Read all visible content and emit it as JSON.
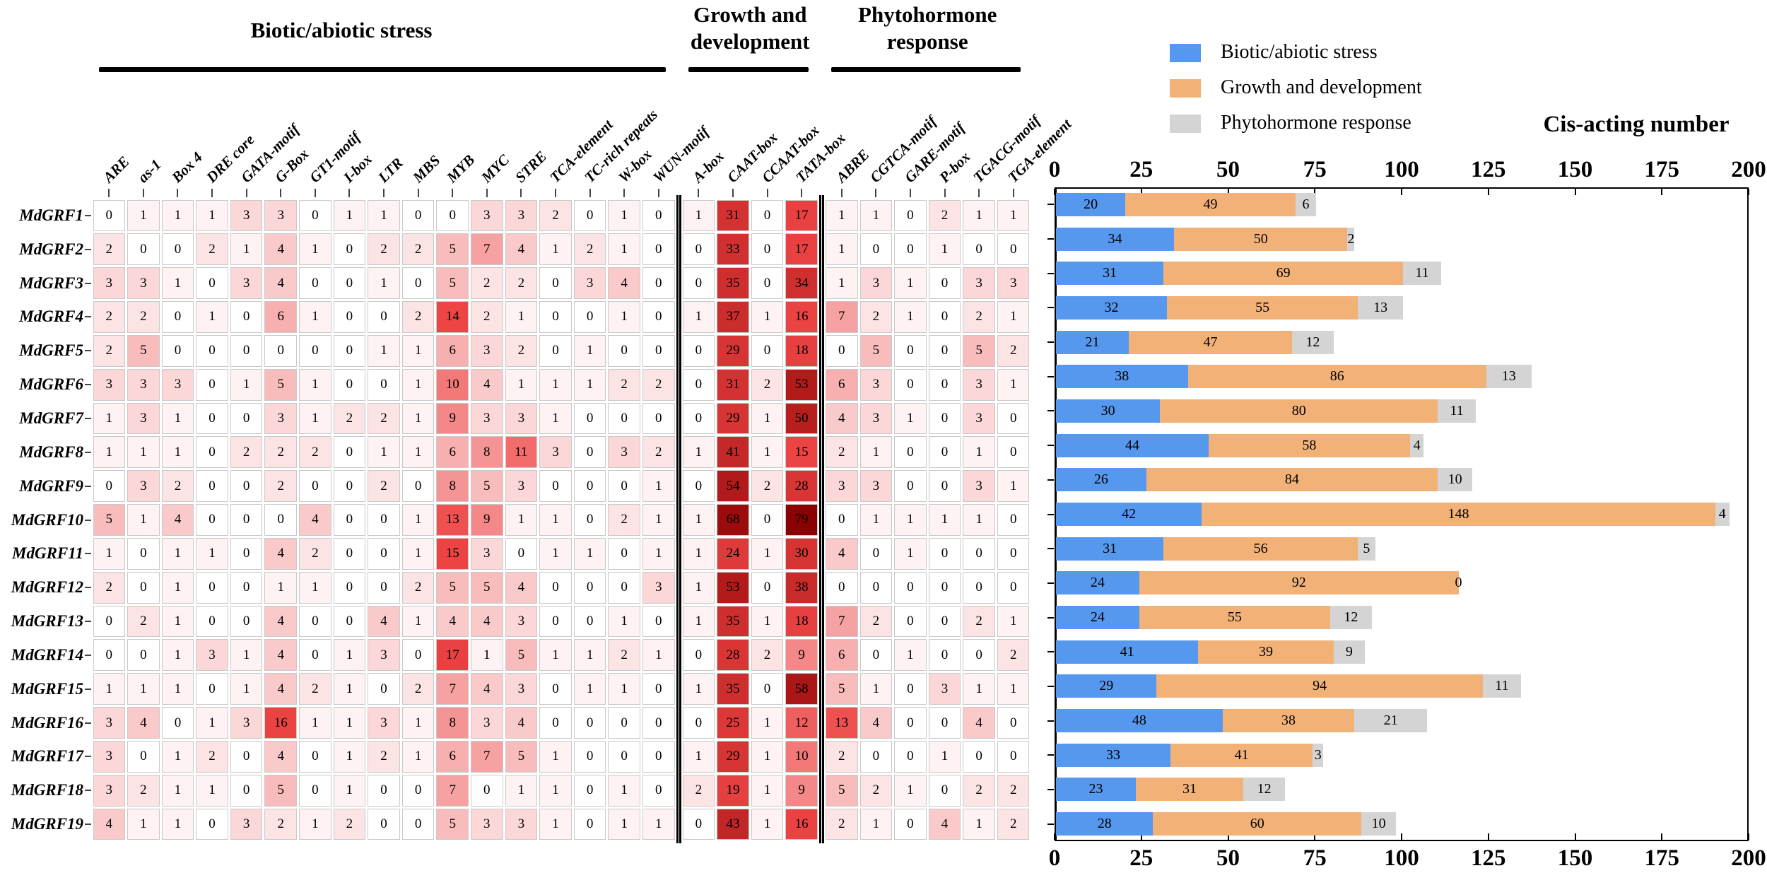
{
  "figure_title": "Cis-acting number",
  "chart_data": [
    {
      "type": "heatmap",
      "row_labels": [
        "MdGRF1",
        "MdGRF2",
        "MdGRF3",
        "MdGRF4",
        "MdGRF5",
        "MdGRF6",
        "MdGRF7",
        "MdGRF8",
        "MdGRF9",
        "MdGRF10",
        "MdGRF11",
        "MdGRF12",
        "MdGRF13",
        "MdGRF14",
        "MdGRF15",
        "MdGRF16",
        "MdGRF17",
        "MdGRF18",
        "MdGRF19"
      ],
      "column_groups": [
        {
          "title_lines": [
            "Biotic/abiotic stress"
          ],
          "columns": [
            "ARE",
            "as-1",
            "Box 4",
            "DRE core",
            "GATA-motif",
            "G-Box",
            "GT1-motif",
            "I-box",
            "LTR",
            "MBS",
            "MYB",
            "MYC",
            "STRE",
            "TCA-element",
            "TC-rich repeats",
            "W-box",
            "WUN-motif"
          ]
        },
        {
          "title_lines": [
            "Growth and",
            "development"
          ],
          "columns": [
            "A-box",
            "CAAT-box",
            "CCAAT-box",
            "TATA-box"
          ]
        },
        {
          "title_lines": [
            "Phytohormone",
            "response"
          ],
          "columns": [
            "ABRE",
            "CGTCA-motif",
            "GARE-motif",
            "P-box",
            "TGACG-motif",
            "TGA-element"
          ]
        }
      ],
      "values": [
        [
          0,
          1,
          1,
          1,
          3,
          3,
          0,
          1,
          1,
          0,
          0,
          3,
          3,
          2,
          0,
          1,
          0,
          1,
          31,
          0,
          17,
          1,
          1,
          0,
          2,
          1,
          1
        ],
        [
          2,
          0,
          0,
          2,
          1,
          4,
          1,
          0,
          2,
          2,
          5,
          7,
          4,
          1,
          2,
          1,
          0,
          0,
          33,
          0,
          17,
          1,
          0,
          0,
          1,
          0,
          0
        ],
        [
          3,
          3,
          1,
          0,
          3,
          4,
          0,
          0,
          1,
          0,
          5,
          2,
          2,
          0,
          3,
          4,
          0,
          0,
          35,
          0,
          34,
          1,
          3,
          1,
          0,
          3,
          3
        ],
        [
          2,
          2,
          0,
          1,
          0,
          6,
          1,
          0,
          0,
          2,
          14,
          2,
          1,
          0,
          0,
          1,
          0,
          1,
          37,
          1,
          16,
          7,
          2,
          1,
          0,
          2,
          1
        ],
        [
          2,
          5,
          0,
          0,
          0,
          0,
          0,
          0,
          1,
          1,
          6,
          3,
          2,
          0,
          1,
          0,
          0,
          0,
          29,
          0,
          18,
          0,
          5,
          0,
          0,
          5,
          2
        ],
        [
          3,
          3,
          3,
          0,
          1,
          5,
          1,
          0,
          0,
          1,
          10,
          4,
          1,
          1,
          1,
          2,
          2,
          0,
          31,
          2,
          53,
          6,
          3,
          0,
          0,
          3,
          1
        ],
        [
          1,
          3,
          1,
          0,
          0,
          3,
          1,
          2,
          2,
          1,
          9,
          3,
          3,
          1,
          0,
          0,
          0,
          0,
          29,
          1,
          50,
          4,
          3,
          1,
          0,
          3,
          0
        ],
        [
          1,
          1,
          1,
          0,
          2,
          2,
          2,
          0,
          1,
          1,
          6,
          8,
          11,
          3,
          0,
          3,
          2,
          1,
          41,
          1,
          15,
          2,
          1,
          0,
          0,
          1,
          0
        ],
        [
          0,
          3,
          2,
          0,
          0,
          2,
          0,
          0,
          2,
          0,
          8,
          5,
          3,
          0,
          0,
          0,
          1,
          0,
          54,
          2,
          28,
          3,
          3,
          0,
          0,
          3,
          1
        ],
        [
          5,
          1,
          4,
          0,
          0,
          0,
          4,
          0,
          0,
          1,
          13,
          9,
          1,
          1,
          0,
          2,
          1,
          1,
          68,
          0,
          79,
          0,
          1,
          1,
          1,
          1,
          0
        ],
        [
          1,
          0,
          1,
          1,
          0,
          4,
          2,
          0,
          0,
          1,
          15,
          3,
          0,
          1,
          1,
          0,
          1,
          1,
          24,
          1,
          30,
          4,
          0,
          1,
          0,
          0,
          0
        ],
        [
          2,
          0,
          1,
          0,
          0,
          1,
          1,
          0,
          0,
          2,
          5,
          5,
          4,
          0,
          0,
          0,
          3,
          1,
          53,
          0,
          38,
          0,
          0,
          0,
          0,
          0,
          0
        ],
        [
          0,
          2,
          1,
          0,
          0,
          4,
          0,
          0,
          4,
          1,
          4,
          4,
          3,
          0,
          0,
          1,
          0,
          1,
          35,
          1,
          18,
          7,
          2,
          0,
          0,
          2,
          1
        ],
        [
          0,
          0,
          1,
          3,
          1,
          4,
          0,
          1,
          3,
          0,
          17,
          1,
          5,
          1,
          1,
          2,
          1,
          0,
          28,
          2,
          9,
          6,
          0,
          1,
          0,
          0,
          2
        ],
        [
          1,
          1,
          1,
          0,
          1,
          4,
          2,
          1,
          0,
          2,
          7,
          4,
          3,
          0,
          1,
          1,
          0,
          1,
          35,
          0,
          58,
          5,
          1,
          0,
          3,
          1,
          1
        ],
        [
          3,
          4,
          0,
          1,
          3,
          16,
          1,
          1,
          3,
          1,
          8,
          3,
          4,
          0,
          0,
          0,
          0,
          0,
          25,
          1,
          12,
          13,
          4,
          0,
          0,
          4,
          0
        ],
        [
          3,
          0,
          1,
          2,
          0,
          4,
          0,
          1,
          2,
          1,
          6,
          7,
          5,
          1,
          0,
          0,
          0,
          1,
          29,
          1,
          10,
          2,
          0,
          0,
          1,
          0,
          0
        ],
        [
          3,
          2,
          1,
          1,
          0,
          5,
          0,
          1,
          0,
          0,
          7,
          0,
          1,
          1,
          0,
          1,
          0,
          2,
          19,
          1,
          9,
          5,
          2,
          1,
          0,
          2,
          2
        ],
        [
          4,
          1,
          1,
          0,
          3,
          2,
          1,
          2,
          0,
          0,
          5,
          3,
          3,
          1,
          0,
          1,
          1,
          0,
          43,
          1,
          16,
          2,
          1,
          0,
          4,
          1,
          2
        ]
      ],
      "color_scale": {
        "stops": [
          {
            "value": 0,
            "color": "#ffffff"
          },
          {
            "value": 14,
            "color": "#ee4444"
          },
          {
            "value": 79,
            "color": "#8b0000"
          }
        ]
      }
    },
    {
      "type": "bar",
      "orientation": "horizontal-stacked",
      "title": "Cis-acting number",
      "categories": [
        "MdGRF1",
        "MdGRF2",
        "MdGRF3",
        "MdGRF4",
        "MdGRF5",
        "MdGRF6",
        "MdGRF7",
        "MdGRF8",
        "MdGRF9",
        "MdGRF10",
        "MdGRF11",
        "MdGRF12",
        "MdGRF13",
        "MdGRF14",
        "MdGRF15",
        "MdGRF16",
        "MdGRF17",
        "MdGRF18",
        "MdGRF19"
      ],
      "series": [
        {
          "name": "Biotic/abiotic stress",
          "color": "#5598ee",
          "values": [
            20,
            34,
            31,
            32,
            21,
            38,
            30,
            44,
            26,
            42,
            31,
            24,
            24,
            41,
            29,
            48,
            33,
            23,
            28
          ]
        },
        {
          "name": "Growth and development",
          "color": "#f2b176",
          "values": [
            49,
            50,
            69,
            55,
            47,
            86,
            80,
            58,
            84,
            148,
            56,
            92,
            55,
            39,
            94,
            38,
            41,
            31,
            60
          ]
        },
        {
          "name": "Phytohormone response",
          "color": "#d4d4d4",
          "values": [
            6,
            2,
            11,
            13,
            12,
            13,
            11,
            4,
            10,
            4,
            5,
            0,
            12,
            9,
            11,
            21,
            3,
            12,
            10
          ]
        }
      ],
      "x_axis": {
        "ticks": [
          0,
          25,
          50,
          75,
          100,
          125,
          150,
          175,
          200
        ],
        "max": 200,
        "tick_sides": "top-and-bottom"
      },
      "legend_position": "top-left",
      "grid": false
    }
  ]
}
